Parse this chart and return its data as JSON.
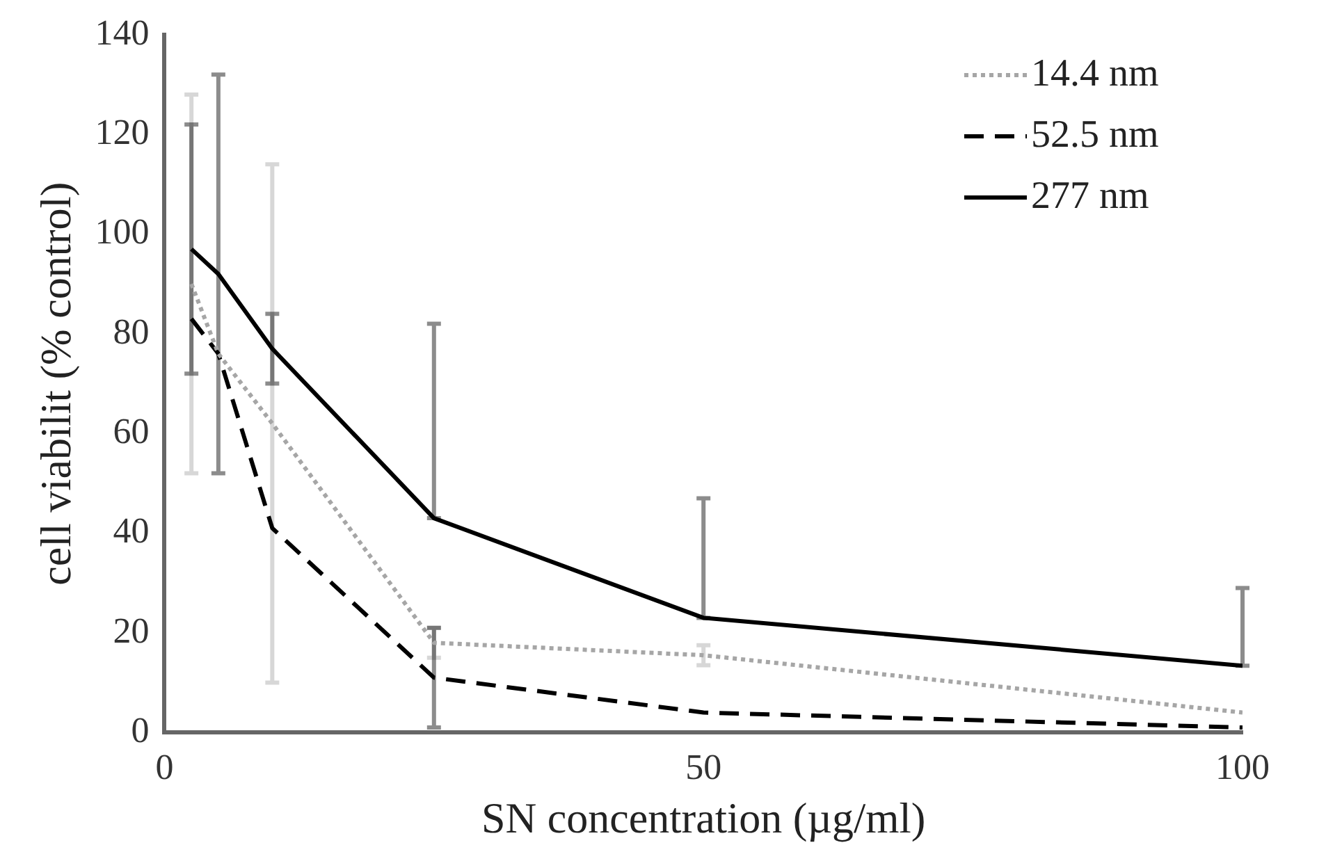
{
  "chart_data": {
    "type": "line",
    "xlabel": "SN concentration (µg/ml)",
    "ylabel": "cell viabilit (% control)",
    "x": [
      2.5,
      5,
      10,
      25,
      50,
      100
    ],
    "series": [
      {
        "name": "14.4 nm",
        "color": "#a6a6a6",
        "line_style": "dotted",
        "values": [
          90,
          76,
          62,
          18,
          15.5,
          4
        ],
        "errors": [
          38,
          null,
          52,
          3,
          2,
          null
        ]
      },
      {
        "name": "52.5 nm",
        "color": "#000000",
        "line_style": "dashed",
        "values": [
          83,
          76,
          41,
          11,
          4,
          1
        ],
        "errors": [
          null,
          null,
          null,
          10,
          null,
          null
        ]
      },
      {
        "name": "277 nm",
        "color": "#000000",
        "line_style": "solid",
        "values": [
          97,
          92,
          77,
          43,
          23,
          13.4
        ],
        "errors": [
          25,
          40,
          7,
          [
            43,
            82
          ],
          [
            23,
            47
          ],
          [
            13.4,
            29
          ]
        ]
      }
    ],
    "xlim": [
      0,
      100
    ],
    "xticks": [
      0,
      50,
      100
    ],
    "ylim": [
      0,
      140
    ],
    "yticks": [
      0,
      20,
      40,
      60,
      80,
      100,
      120,
      140
    ],
    "grid": false,
    "legend": "top right"
  }
}
